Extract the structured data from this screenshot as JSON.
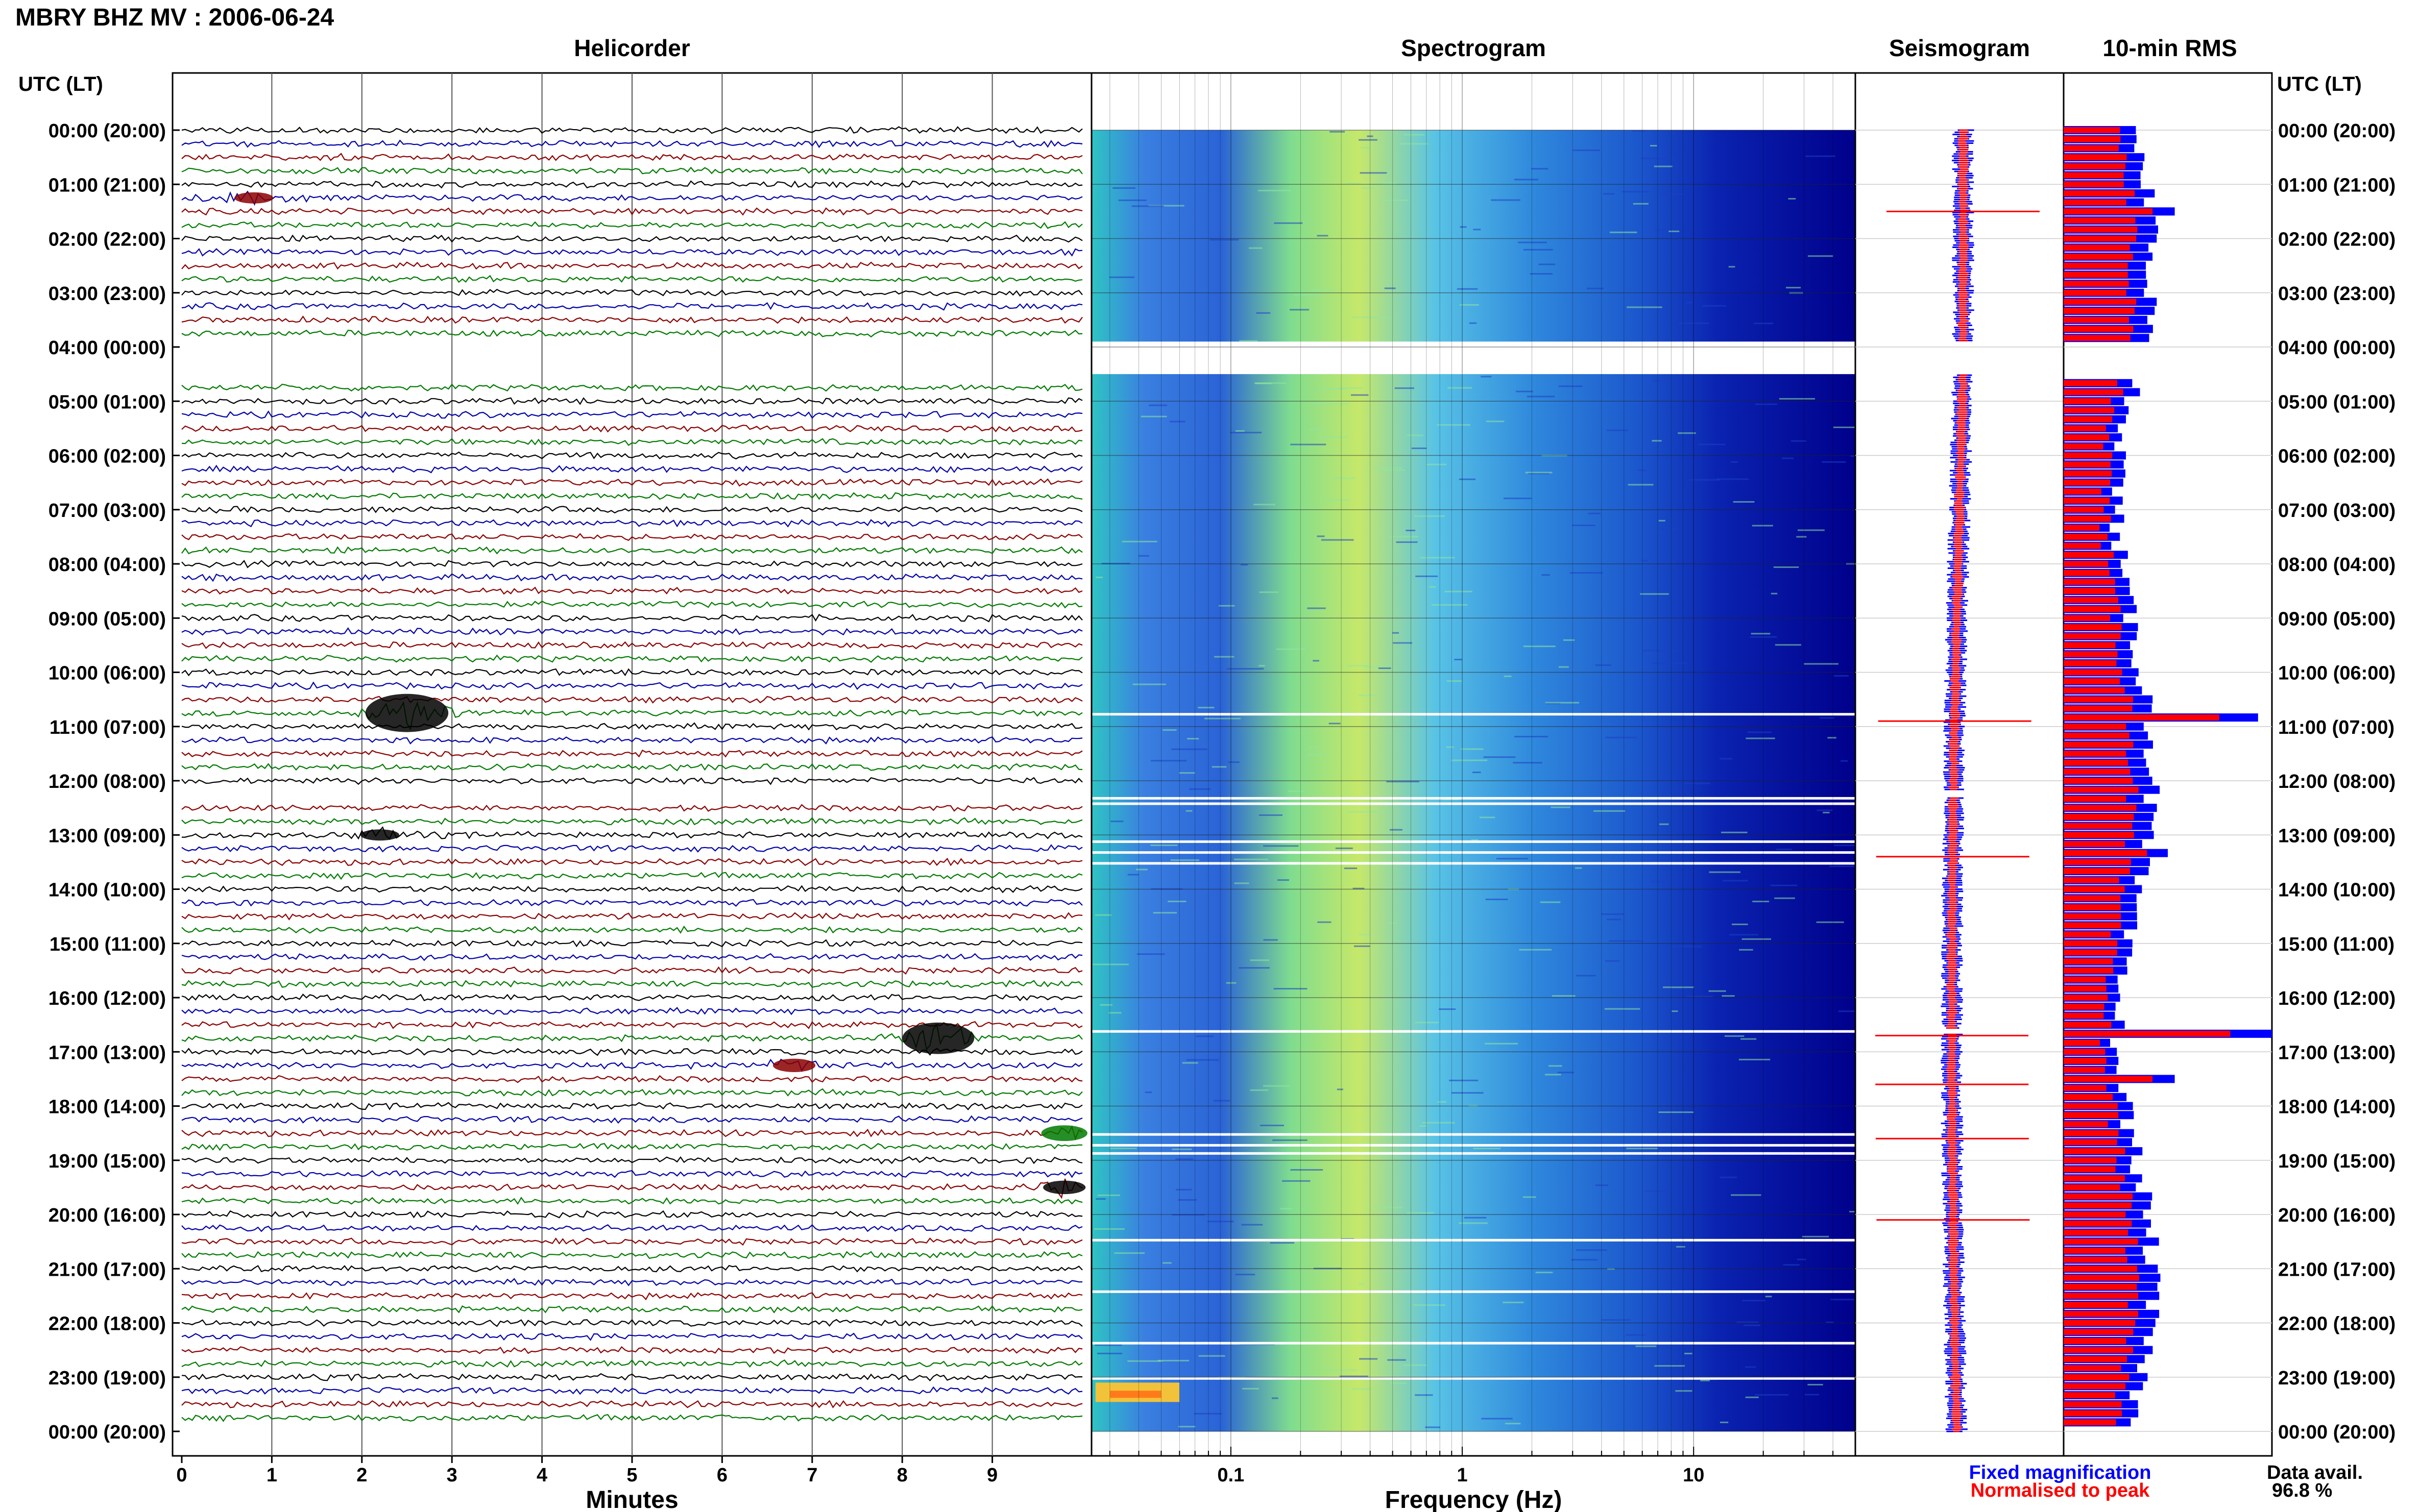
{
  "chart_data": {
    "type": "heatmap",
    "title": "MBRY BHZ MV : 2006-06-24",
    "panels": {
      "helicorder": {
        "title": "Helicorder",
        "xlabel": "Minutes",
        "xticks": [
          "0",
          "1",
          "2",
          "3",
          "4",
          "5",
          "6",
          "7",
          "8",
          "9"
        ],
        "xlim": [
          0,
          10
        ],
        "trace_colors": [
          "#000000",
          "#0000aa",
          "#8b0000",
          "#007a00"
        ],
        "events": [
          {
            "hour": 1.25,
            "minute": 0.8,
            "amp": 10,
            "color": "#8b0000"
          },
          {
            "hour": 10.75,
            "minute": 2.5,
            "amp": 34,
            "color": "#000000"
          },
          {
            "hour": 13.0,
            "minute": 2.2,
            "amp": 10,
            "color": "#000000"
          },
          {
            "hour": 16.75,
            "minute": 8.4,
            "amp": 28,
            "color": "#000000"
          },
          {
            "hour": 17.25,
            "minute": 6.8,
            "amp": 12,
            "color": "#8b0000"
          },
          {
            "hour": 18.5,
            "minute": 9.8,
            "amp": 14,
            "color": "#007a00"
          },
          {
            "hour": 19.5,
            "minute": 9.8,
            "amp": 12,
            "color": "#000000"
          }
        ],
        "gaps_hours": [
          [
            3.9,
            4.5
          ],
          [
            12.2,
            12.3
          ],
          [
            16.6,
            16.65
          ]
        ]
      },
      "spectrogram": {
        "title": "Spectrogram",
        "xlabel": "Frequency (Hz)",
        "xscale": "log",
        "xticks": [
          "0.1",
          "1",
          "10"
        ],
        "xlim": [
          0.025,
          50
        ],
        "peak_band_hz": [
          0.2,
          0.5
        ]
      },
      "seismogram": {
        "title": "Seismogram",
        "spikes_hours": [
          1.5,
          10.9,
          13.4,
          16.7,
          17.6,
          18.6,
          20.1
        ]
      },
      "rms": {
        "title": "10-min RMS",
        "high_intervals": [
          {
            "hour": 1.5,
            "value": 1.6
          },
          {
            "hour": 10.83,
            "value": 2.8
          },
          {
            "hour": 13.33,
            "value": 1.5
          },
          {
            "hour": 16.67,
            "value": 3.0
          },
          {
            "hour": 17.5,
            "value": 1.6
          }
        ]
      }
    },
    "ylabel_left": "UTC (LT)",
    "ylabel_right": "UTC (LT)",
    "yticks": [
      "00:00 (20:00)",
      "01:00 (21:00)",
      "02:00 (22:00)",
      "03:00 (23:00)",
      "04:00 (00:00)",
      "05:00 (01:00)",
      "06:00 (02:00)",
      "07:00 (03:00)",
      "08:00 (04:00)",
      "09:00 (05:00)",
      "10:00 (06:00)",
      "11:00 (07:00)",
      "12:00 (08:00)",
      "13:00 (09:00)",
      "14:00 (10:00)",
      "15:00 (11:00)",
      "16:00 (12:00)",
      "17:00 (13:00)",
      "18:00 (14:00)",
      "19:00 (15:00)",
      "20:00 (16:00)",
      "21:00 (17:00)",
      "22:00 (18:00)",
      "23:00 (19:00)",
      "00:00 (20:00)"
    ],
    "legend": [
      {
        "label": "Fixed magnification",
        "color": "#0000ff"
      },
      {
        "label": "Normalised to peak",
        "color": "#ff0000"
      }
    ],
    "data_avail_label": "Data avail.",
    "data_avail_value": "96.8 %"
  }
}
